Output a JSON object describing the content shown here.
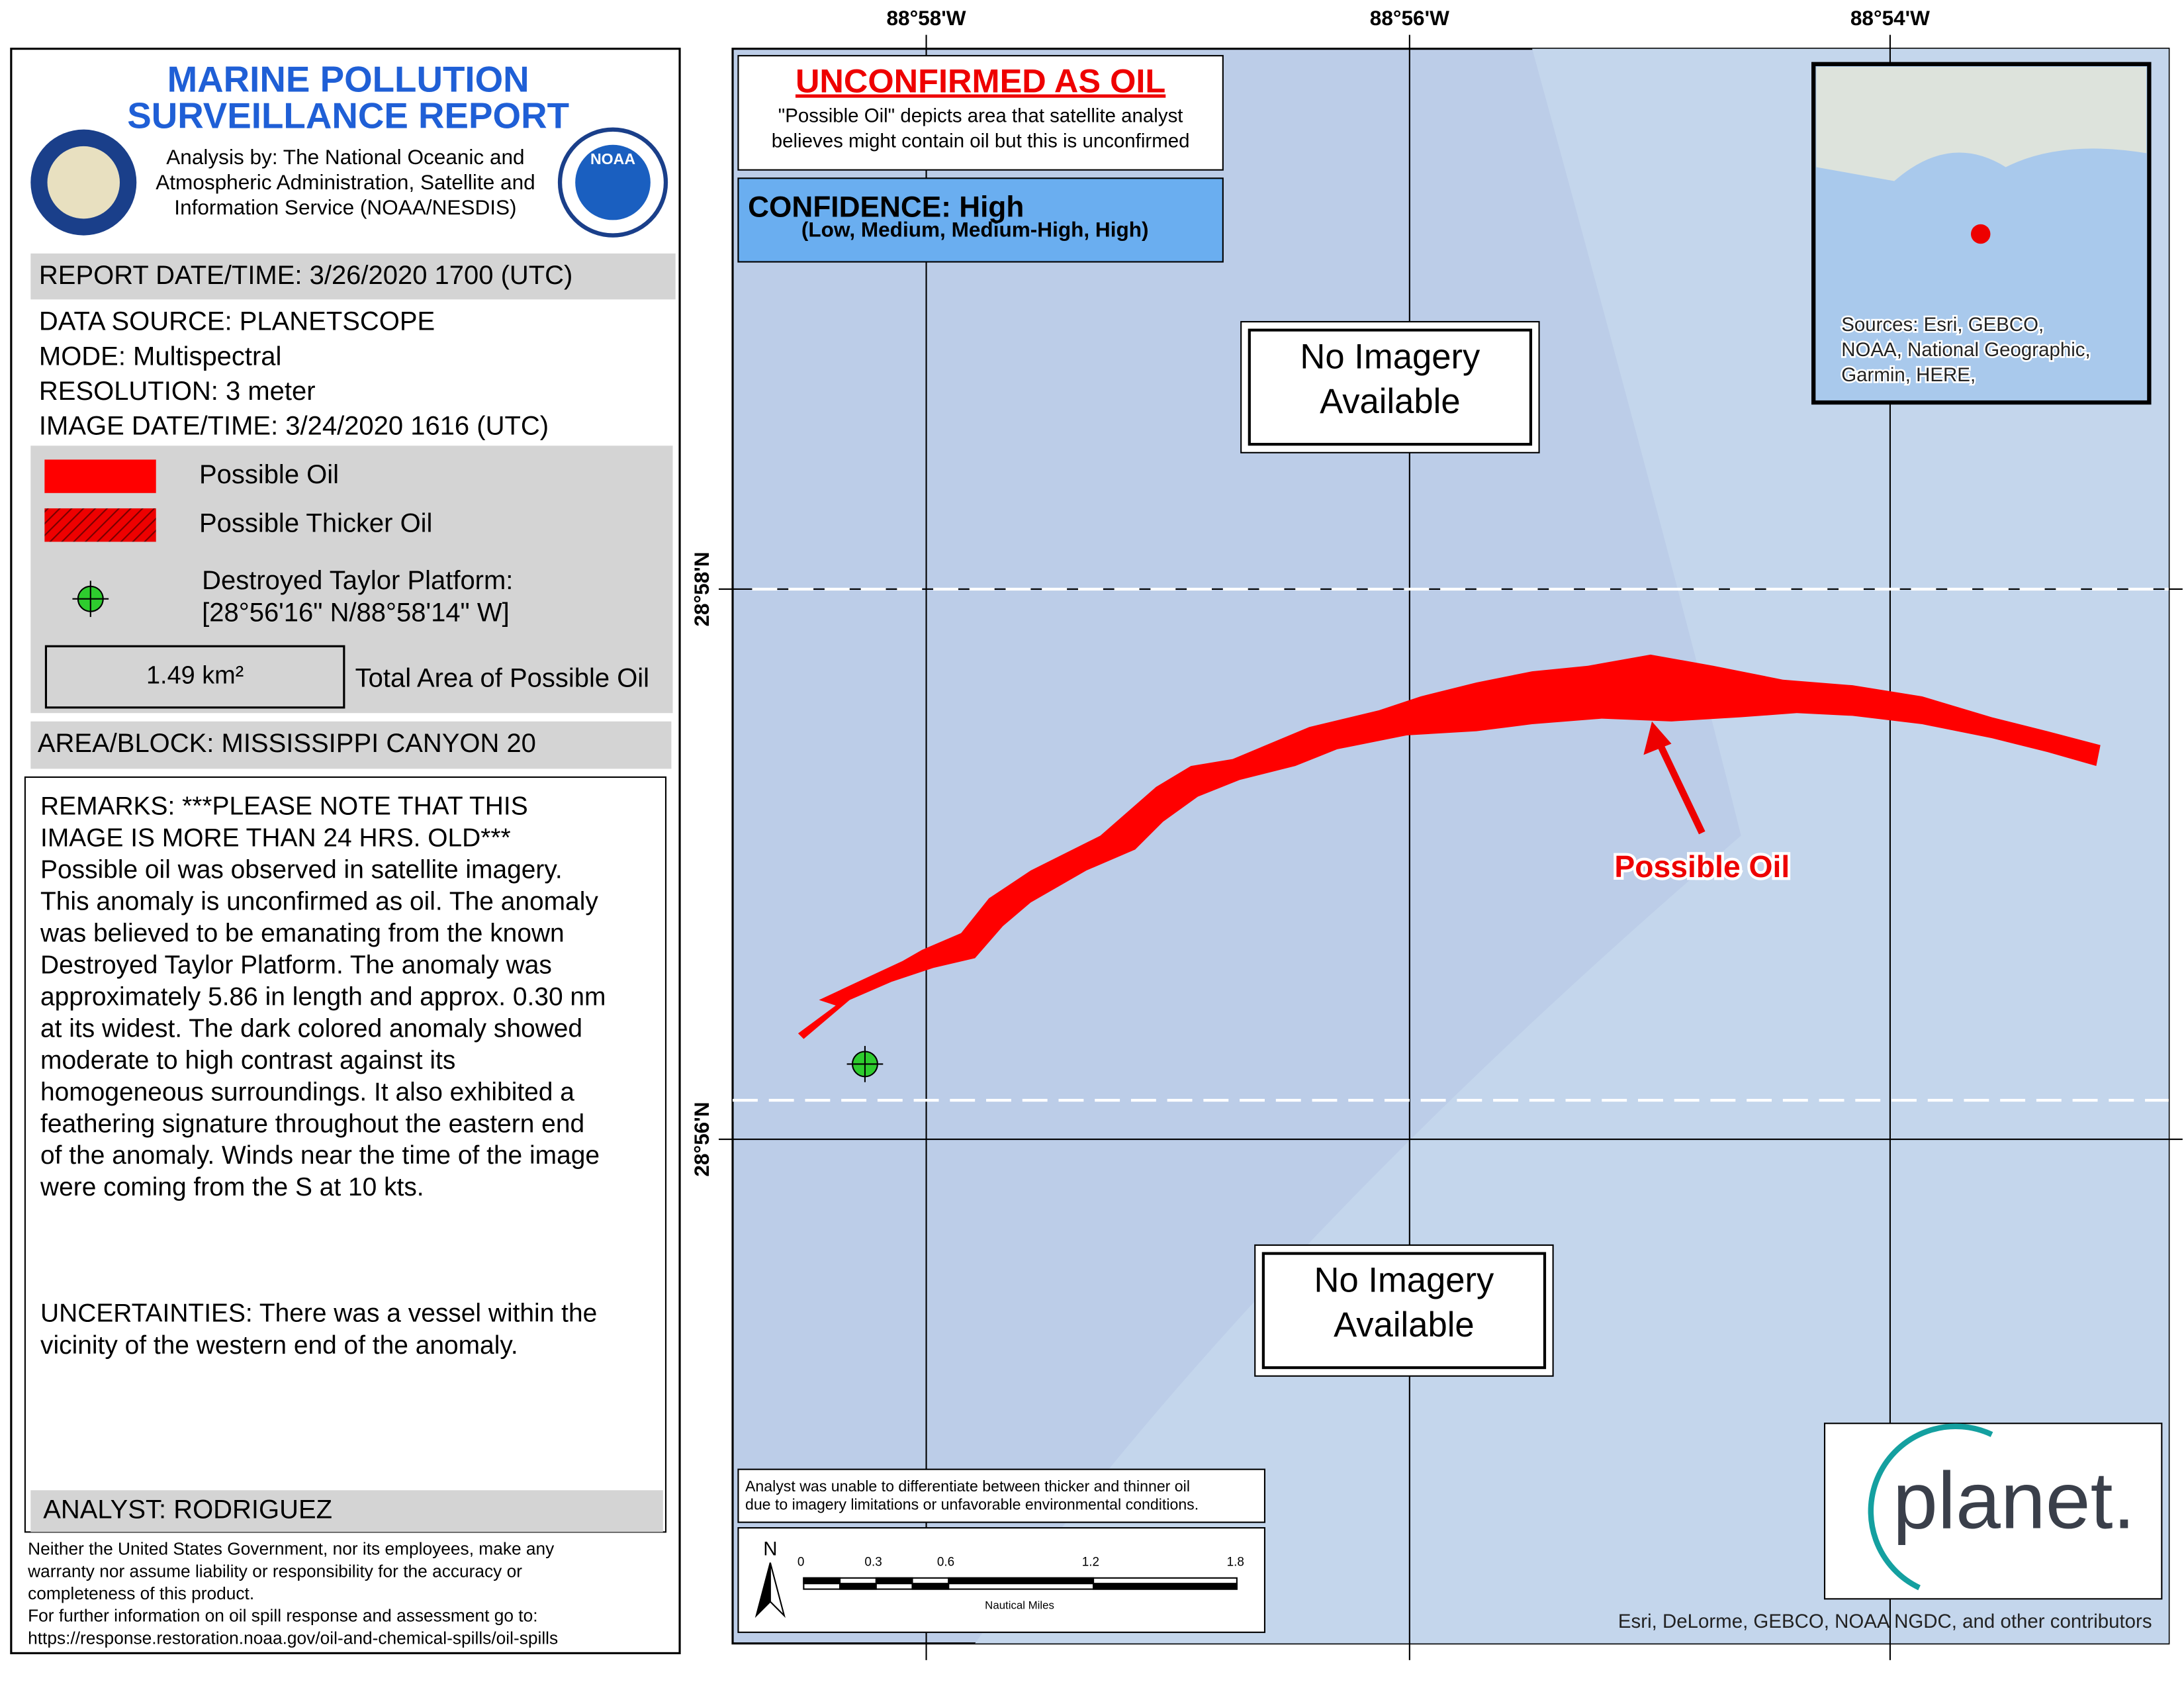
{
  "header": {
    "title": [
      "MARINE POLLUTION",
      "SURVEILLANCE REPORT"
    ],
    "agency": [
      "Analysis by: The National Oceanic and",
      "Atmospheric Administration, Satellite and",
      "Information Service (NOAA/NESDIS)"
    ],
    "seal_label": "NOAA"
  },
  "report": {
    "report_datetime": "REPORT DATE/TIME: 3/26/2020 1700 (UTC)",
    "fields": [
      "DATA SOURCE: PLANETSCOPE",
      "MODE: Multispectral",
      "RESOLUTION: 3 meter",
      "IMAGE DATE/TIME: 3/24/2020 1616 (UTC)"
    ],
    "area_block": "AREA/BLOCK: MISSISSIPPI CANYON    20"
  },
  "legend": {
    "possible_oil": "Possible Oil",
    "thicker_oil": "Possible Thicker Oil",
    "platform": [
      "Destroyed Taylor Platform:",
      "[28°56'16\" N/88°58'14\" W]"
    ],
    "area_value": "1.49 km²",
    "area_label": "Total Area of Possible Oil"
  },
  "remarks": [
    "REMARKS: ***PLEASE NOTE THAT THIS",
    "IMAGE IS MORE THAN 24 HRS. OLD***",
    "Possible oil was observed in satellite imagery.",
    "This anomaly is unconfirmed as oil. The anomaly",
    "was believed to be emanating from the known",
    "Destroyed Taylor Platform. The anomaly was",
    "approximately 5.86 in length and approx. 0.30 nm",
    "at its widest. The dark colored anomaly showed",
    "moderate to high contrast against its",
    "homogeneous surroundings. It also exhibited a",
    "feathering signature throughout the eastern end",
    "of the anomaly. Winds near the time of the image",
    "were coming from the S at 10 kts."
  ],
  "uncertainties": [
    "UNCERTAINTIES: There was a vessel within the",
    "vicinity of the western end of the anomaly."
  ],
  "analyst": "ANALYST: RODRIGUEZ",
  "disclaimer": [
    "Neither the United States Government, nor its employees, make any",
    "warranty nor assume liability or responsibility for the accuracy or",
    "completeness of this product.",
    "For further information on oil spill response and assessment go to:",
    "https://response.restoration.noaa.gov/oil-and-chemical-spills/oil-spills"
  ],
  "map": {
    "lon_labels": [
      "88°58'W",
      "88°56'W",
      "88°54'W"
    ],
    "lat_labels": [
      "28°58'N",
      "28°56'N"
    ],
    "unconfirmed": {
      "title": "UNCONFIRMED AS OIL",
      "lines": [
        "\"Possible Oil\" depicts area that satellite analyst",
        "believes might contain oil but this is unconfirmed"
      ]
    },
    "confidence": {
      "title": "CONFIDENCE: High",
      "scale": "(Low, Medium, Medium-High, High)"
    },
    "no_imagery": [
      [
        "No Imagery",
        "Available"
      ],
      [
        "No Imagery",
        "Available"
      ]
    ],
    "oil_label": "Possible Oil",
    "inset_sources": [
      "Sources: Esri, GEBCO,",
      "NOAA, National Geographic,",
      "Garmin, HERE,"
    ],
    "analyst_note": [
      "Analyst was unable to differentiate between thicker and thinner oil",
      "due to imagery limitations or unfavorable environmental conditions."
    ],
    "north": "N",
    "scale_labels": [
      "0",
      "0.3",
      "0.6",
      "1.2",
      "1.8"
    ],
    "scale_unit": "Nautical Miles",
    "logo": "planet.",
    "credits": "Esri, DeLorme, GEBCO, NOAA NGDC, and other contributors"
  }
}
